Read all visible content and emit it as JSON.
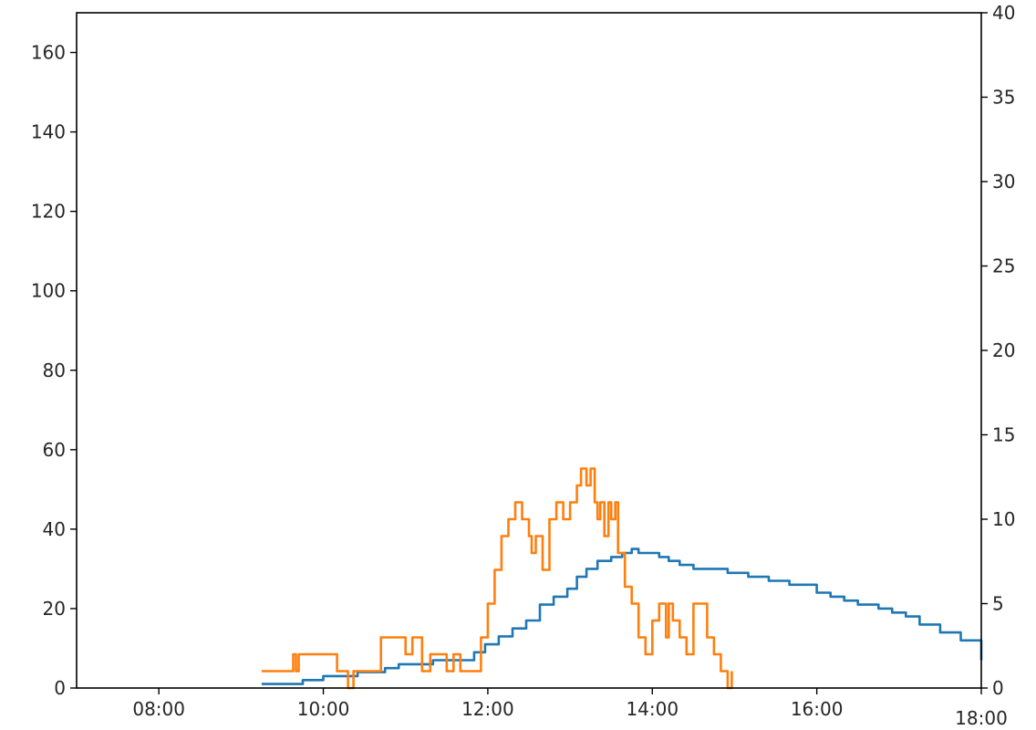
{
  "chart_data": {
    "type": "line",
    "title": "",
    "xlabel": "",
    "ylabel": "",
    "y2label": "",
    "x_axis": {
      "type": "time",
      "range": [
        "07:00",
        "18:00"
      ],
      "ticks": [
        "08:00",
        "10:00",
        "12:00",
        "14:00",
        "16:00",
        "18:00"
      ]
    },
    "y_axis_left": {
      "range": [
        0,
        170
      ],
      "ticks": [
        0,
        20,
        40,
        60,
        80,
        100,
        120,
        140,
        160
      ]
    },
    "y_axis_right": {
      "range": [
        0,
        40
      ],
      "ticks": [
        0,
        5,
        10,
        15,
        20,
        25,
        30,
        35,
        40
      ]
    },
    "grid": false,
    "legend": "none",
    "series": [
      {
        "axis": "left",
        "color": "#1f77b4",
        "points": [
          [
            "09:15",
            1
          ],
          [
            "09:40",
            1
          ],
          [
            "09:45",
            2
          ],
          [
            "10:00",
            3
          ],
          [
            "10:20",
            3
          ],
          [
            "10:25",
            4
          ],
          [
            "10:40",
            4
          ],
          [
            "10:45",
            5
          ],
          [
            "10:55",
            6
          ],
          [
            "11:20",
            7
          ],
          [
            "11:40",
            7
          ],
          [
            "11:50",
            9
          ],
          [
            "11:58",
            11
          ],
          [
            "12:08",
            13
          ],
          [
            "12:18",
            15
          ],
          [
            "12:28",
            17
          ],
          [
            "12:38",
            21
          ],
          [
            "12:48",
            23
          ],
          [
            "12:58",
            25
          ],
          [
            "13:05",
            28
          ],
          [
            "13:12",
            30
          ],
          [
            "13:20",
            32
          ],
          [
            "13:30",
            33
          ],
          [
            "13:38",
            34
          ],
          [
            "13:45",
            35
          ],
          [
            "13:50",
            34
          ],
          [
            "13:58",
            34
          ],
          [
            "14:05",
            33
          ],
          [
            "14:12",
            32
          ],
          [
            "14:20",
            31
          ],
          [
            "14:30",
            30
          ],
          [
            "14:40",
            30
          ],
          [
            "14:55",
            29
          ],
          [
            "15:10",
            28
          ],
          [
            "15:25",
            27
          ],
          [
            "15:40",
            26
          ],
          [
            "15:50",
            26
          ],
          [
            "16:00",
            24
          ],
          [
            "16:10",
            23
          ],
          [
            "16:20",
            22
          ],
          [
            "16:30",
            21
          ],
          [
            "16:45",
            20
          ],
          [
            "16:55",
            19
          ],
          [
            "17:05",
            18
          ],
          [
            "17:15",
            16
          ],
          [
            "17:30",
            14
          ],
          [
            "17:45",
            12
          ],
          [
            "18:00",
            10
          ],
          [
            "18:00",
            7
          ]
        ]
      },
      {
        "axis": "right",
        "color": "#ff7f0e",
        "points": [
          [
            "09:15",
            1
          ],
          [
            "09:35",
            1
          ],
          [
            "09:38",
            2
          ],
          [
            "09:40",
            1
          ],
          [
            "09:42",
            2
          ],
          [
            "09:50",
            2
          ],
          [
            "10:05",
            2
          ],
          [
            "10:10",
            1
          ],
          [
            "10:15",
            1
          ],
          [
            "10:18",
            0
          ],
          [
            "10:22",
            1
          ],
          [
            "10:40",
            1
          ],
          [
            "10:42",
            3
          ],
          [
            "10:55",
            3
          ],
          [
            "11:00",
            2
          ],
          [
            "11:05",
            3
          ],
          [
            "11:10",
            3
          ],
          [
            "11:12",
            1
          ],
          [
            "11:18",
            2
          ],
          [
            "11:25",
            2
          ],
          [
            "11:30",
            1
          ],
          [
            "11:35",
            2
          ],
          [
            "11:40",
            1
          ],
          [
            "11:50",
            1
          ],
          [
            "11:55",
            3
          ],
          [
            "12:00",
            5
          ],
          [
            "12:05",
            7
          ],
          [
            "12:10",
            9
          ],
          [
            "12:15",
            10
          ],
          [
            "12:20",
            11
          ],
          [
            "12:25",
            10
          ],
          [
            "12:30",
            9
          ],
          [
            "12:32",
            8
          ],
          [
            "12:35",
            9
          ],
          [
            "12:40",
            7
          ],
          [
            "12:45",
            10
          ],
          [
            "12:50",
            11
          ],
          [
            "12:55",
            10
          ],
          [
            "13:00",
            11
          ],
          [
            "13:05",
            12
          ],
          [
            "13:08",
            13
          ],
          [
            "13:12",
            12
          ],
          [
            "13:15",
            13
          ],
          [
            "13:18",
            11
          ],
          [
            "13:20",
            10
          ],
          [
            "13:22",
            11
          ],
          [
            "13:25",
            9
          ],
          [
            "13:28",
            11
          ],
          [
            "13:30",
            10
          ],
          [
            "13:33",
            11
          ],
          [
            "13:35",
            8
          ],
          [
            "13:40",
            6
          ],
          [
            "13:45",
            5
          ],
          [
            "13:50",
            3
          ],
          [
            "13:55",
            2
          ],
          [
            "14:00",
            4
          ],
          [
            "14:05",
            5
          ],
          [
            "14:10",
            3
          ],
          [
            "14:12",
            5
          ],
          [
            "14:15",
            4
          ],
          [
            "14:20",
            3
          ],
          [
            "14:25",
            2
          ],
          [
            "14:30",
            5
          ],
          [
            "14:35",
            5
          ],
          [
            "14:40",
            3
          ],
          [
            "14:45",
            2
          ],
          [
            "14:50",
            1
          ],
          [
            "14:55",
            0
          ],
          [
            "14:58",
            1
          ]
        ]
      }
    ]
  }
}
